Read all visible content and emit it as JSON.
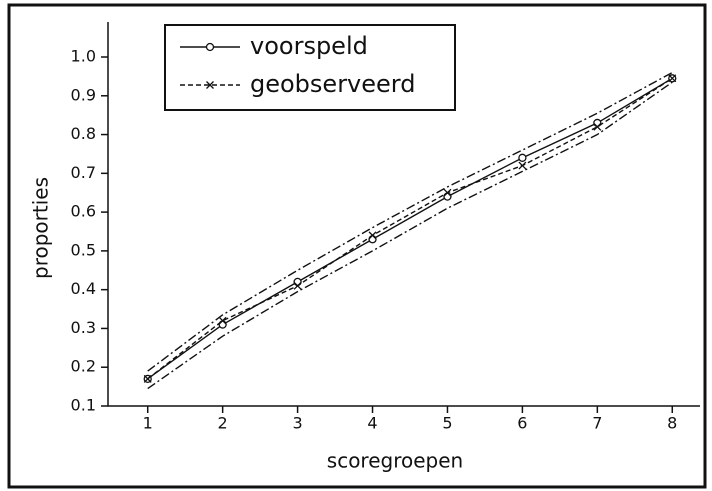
{
  "chart_data": {
    "type": "line",
    "x_label": "scoregroepen",
    "y_label": "proporties",
    "x": [
      1,
      2,
      3,
      4,
      5,
      6,
      7,
      8
    ],
    "series": [
      {
        "name": "voorspeld",
        "color": "#111111",
        "style": "solid",
        "marker": "circle",
        "values": [
          0.17,
          0.31,
          0.42,
          0.53,
          0.64,
          0.74,
          0.83,
          0.945
        ]
      },
      {
        "name": "geobserveerd",
        "color": "#111111",
        "style": "dashed",
        "marker": "x",
        "values": [
          0.17,
          0.32,
          0.41,
          0.54,
          0.65,
          0.72,
          0.82,
          0.945
        ]
      },
      {
        "color": "#111111",
        "style": "dashdot",
        "values": [
          0.19,
          0.335,
          0.45,
          0.56,
          0.665,
          0.76,
          0.855,
          0.96
        ]
      },
      {
        "color": "#111111",
        "style": "dashdot",
        "values": [
          0.145,
          0.28,
          0.395,
          0.5,
          0.61,
          0.705,
          0.8,
          0.935
        ]
      }
    ],
    "xlim": [
      0.47,
      8.37
    ],
    "xticks": [
      1,
      2,
      3,
      4,
      5,
      6,
      7,
      8
    ],
    "ylim": [
      0.1,
      1.0
    ],
    "yticks": [
      {
        "value": 0.1,
        "label": "0.1"
      },
      {
        "value": 0.2,
        "label": "0.2"
      },
      {
        "value": 0.3,
        "label": "0.3"
      },
      {
        "value": 0.4,
        "label": "0.4"
      },
      {
        "value": 0.5,
        "label": "0.5"
      },
      {
        "value": 0.6,
        "label": "0.6"
      },
      {
        "value": 0.7,
        "label": "0.7"
      },
      {
        "value": 0.8,
        "label": "0.8"
      },
      {
        "value": 0.9,
        "label": "0.9"
      },
      {
        "value": 1.0,
        "label": "1.0"
      }
    ],
    "legend": "top-left"
  }
}
